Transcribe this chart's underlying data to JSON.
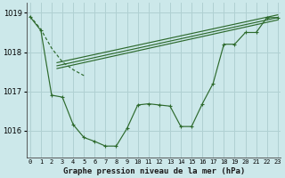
{
  "background_color": "#cce8ea",
  "grid_color": "#b0d0d2",
  "line_color": "#2d6a2d",
  "title": "Graphe pression niveau de la mer (hPa)",
  "ylabel_ticks": [
    1016,
    1017,
    1018,
    1019
  ],
  "xlim": [
    -0.3,
    23.3
  ],
  "ylim": [
    1015.3,
    1019.25
  ],
  "series_main_x": [
    0,
    1,
    2,
    3,
    4,
    5,
    6,
    7,
    8,
    9,
    10,
    11,
    12,
    13,
    14,
    15,
    16,
    17,
    18,
    19,
    20,
    21,
    22,
    23
  ],
  "series_main_y": [
    1018.9,
    1018.55,
    1016.9,
    1016.85,
    1016.15,
    1015.82,
    1015.72,
    1015.6,
    1015.6,
    1016.05,
    1016.65,
    1016.68,
    1016.65,
    1016.62,
    1016.1,
    1016.1,
    1016.68,
    1017.2,
    1018.2,
    1018.2,
    1018.5,
    1018.5,
    1018.88,
    1018.88
  ],
  "series_dashed_x": [
    0,
    1,
    2,
    3,
    4,
    5
  ],
  "series_dashed_y": [
    1018.92,
    1018.58,
    1018.1,
    1017.75,
    1017.55,
    1017.4
  ],
  "trend_lines": [
    {
      "x0": 2.5,
      "y0": 1017.65,
      "x1": 23,
      "y1": 1018.88
    },
    {
      "x0": 2.5,
      "y0": 1017.73,
      "x1": 23,
      "y1": 1018.95
    },
    {
      "x0": 2.5,
      "y0": 1017.58,
      "x1": 23,
      "y1": 1018.82
    }
  ],
  "xtick_labels": [
    "0",
    "1",
    "2",
    "3",
    "4",
    "5",
    "6",
    "7",
    "8",
    "9",
    "10",
    "11",
    "12",
    "13",
    "14",
    "15",
    "16",
    "17",
    "18",
    "19",
    "20",
    "21",
    "22",
    "23"
  ]
}
